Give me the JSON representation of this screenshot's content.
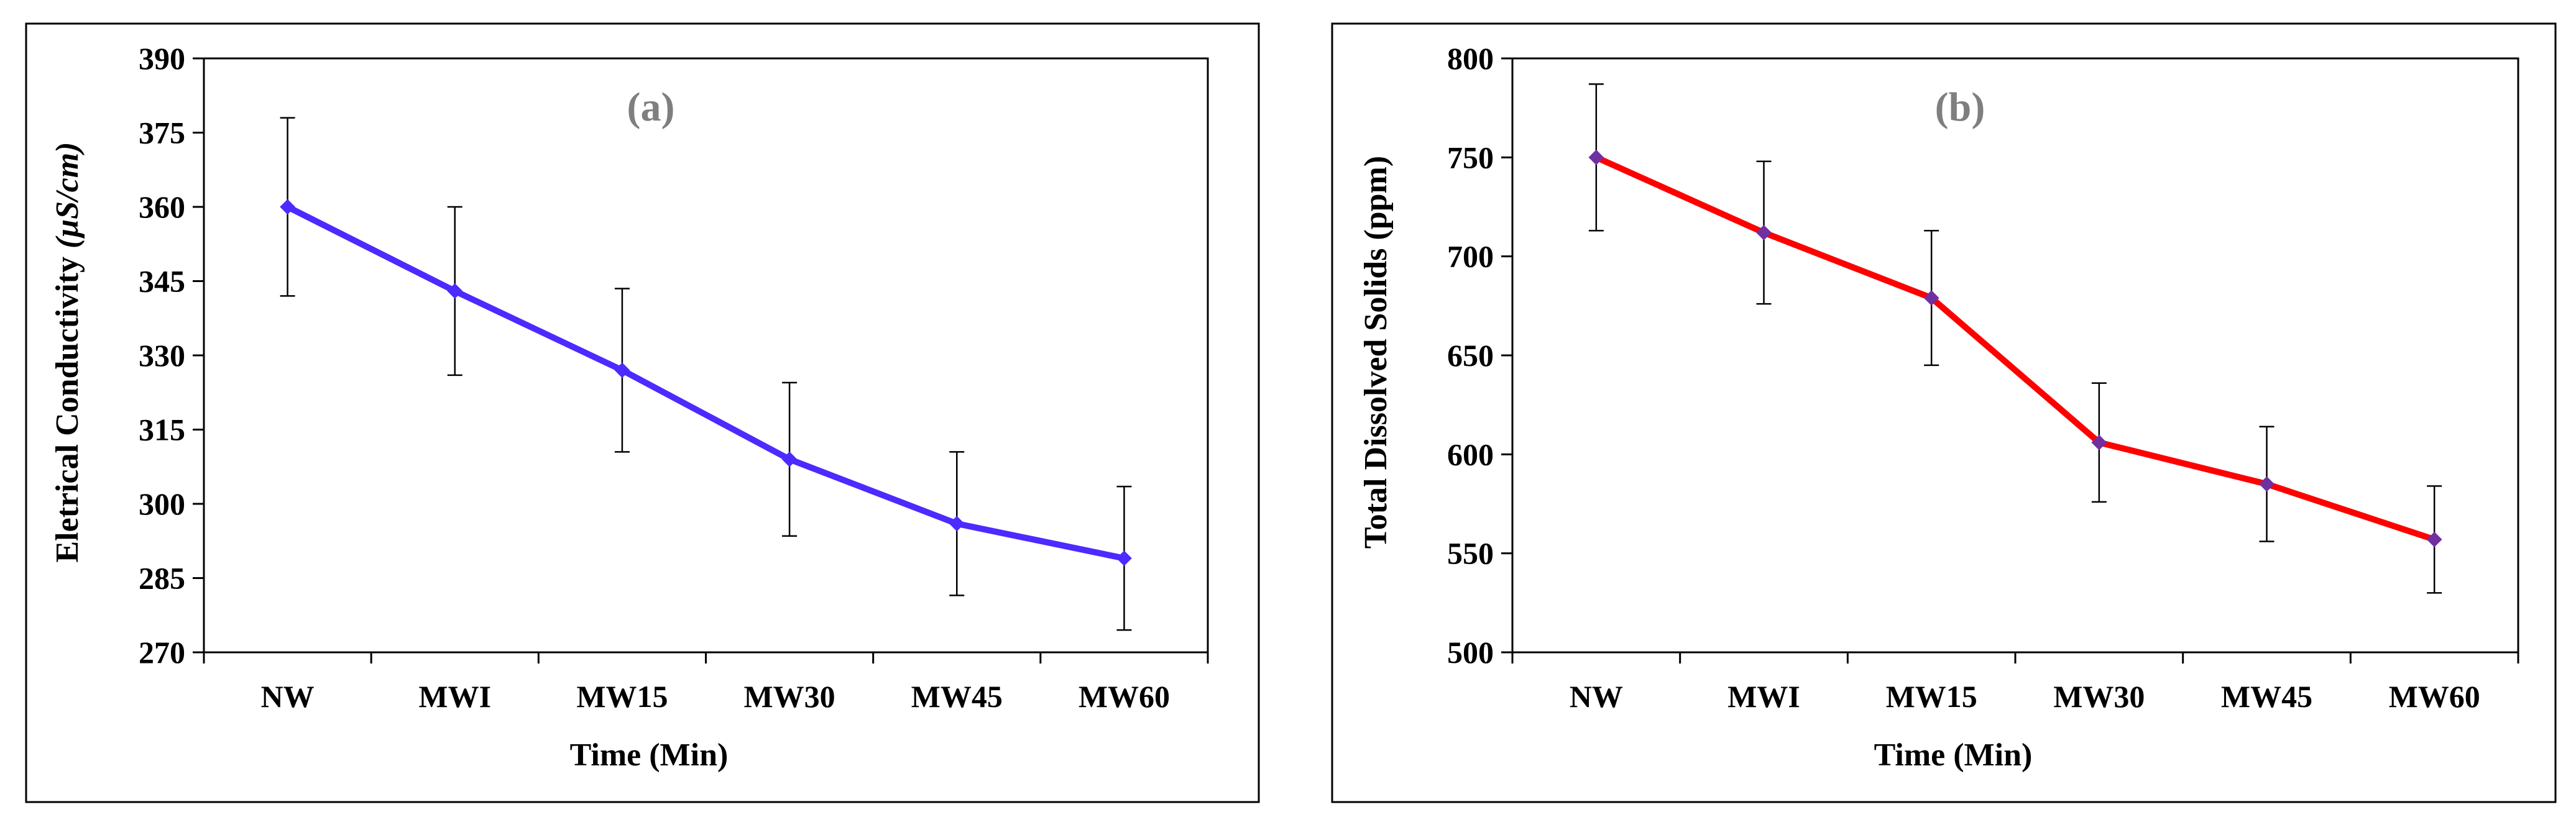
{
  "chart_data": [
    {
      "type": "line",
      "panel_label": "(a)",
      "categories": [
        "NW",
        "MWI",
        "MW15",
        "MW30",
        "MW45",
        "MW60"
      ],
      "series": [
        {
          "name": "Eletrical Conductivity",
          "color": "#4b2bff",
          "marker_color": "#4b2bff",
          "values": [
            360,
            343,
            327,
            309,
            296,
            289
          ],
          "error": [
            18,
            17,
            16.5,
            15.5,
            14.5,
            14.5
          ]
        }
      ],
      "xlabel": "Time (Min)",
      "ylabel_main": "Eletrical Conductivity ",
      "ylabel_unit": "(µS/cm)",
      "ylim": [
        270,
        390
      ],
      "yticks": [
        270,
        285,
        300,
        315,
        330,
        345,
        360,
        375,
        390
      ],
      "grid": false
    },
    {
      "type": "line",
      "panel_label": "(b)",
      "categories": [
        "NW",
        "MWI",
        "MW15",
        "MW30",
        "MW45",
        "MW60"
      ],
      "series": [
        {
          "name": "Total Dissolved Solids",
          "color": "#ff0000",
          "marker_color": "#7030a0",
          "values": [
            750,
            712,
            679,
            606,
            585,
            557
          ],
          "error": [
            37,
            36,
            34,
            30,
            29,
            27
          ]
        }
      ],
      "xlabel": "Time (Min)",
      "ylabel_main": "Total Dissolved Solids (ppm)",
      "ylabel_unit": "",
      "ylim": [
        500,
        800
      ],
      "yticks": [
        500,
        550,
        600,
        650,
        700,
        750,
        800
      ],
      "grid": false
    }
  ]
}
